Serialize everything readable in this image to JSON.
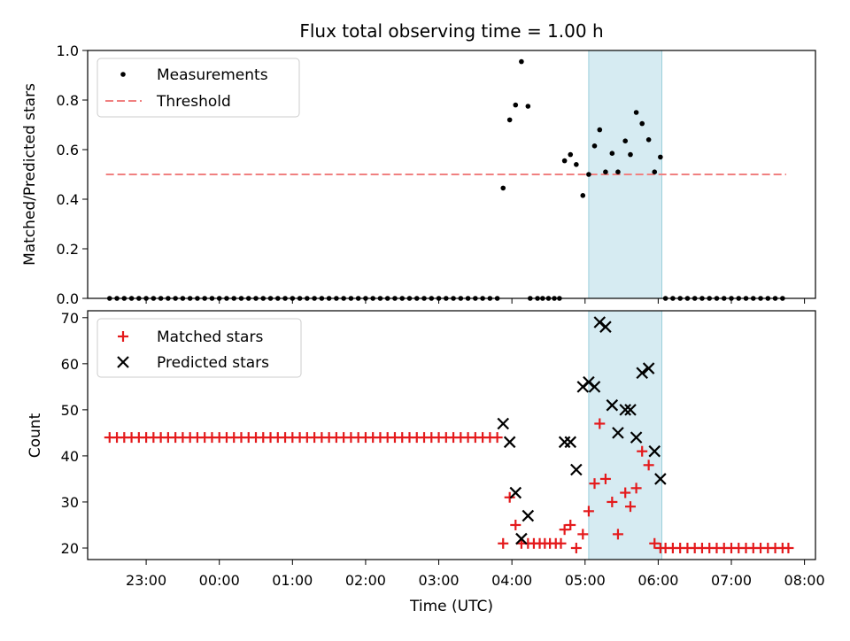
{
  "chart_data": [
    {
      "type": "scatter",
      "title": "Flux total observing time = 1.00 h",
      "ylabel": "Matched/Predicted stars",
      "ylim": [
        0,
        1.0
      ],
      "yticks": [
        "0.0",
        "0.2",
        "0.4",
        "0.6",
        "0.8",
        "1.0"
      ],
      "ytick_values": [
        0,
        0.2,
        0.4,
        0.6,
        0.8,
        1.0
      ],
      "legend": {
        "placement": "top-left",
        "measurements_label": "Measurements",
        "threshold_label": "Threshold"
      },
      "threshold": {
        "value": 0.5,
        "x_start": -1.55,
        "x_end": 7.75,
        "color": "#f08080"
      },
      "highlight_span": [
        5.05,
        6.05
      ],
      "series": [
        {
          "name": "Measurements",
          "marker": "dot",
          "color": "#000000",
          "points": [
            [
              -1.5,
              0
            ],
            [
              -1.4,
              0
            ],
            [
              -1.3,
              0
            ],
            [
              -1.2,
              0
            ],
            [
              -1.1,
              0
            ],
            [
              -1.0,
              0
            ],
            [
              -0.9,
              0
            ],
            [
              -0.8,
              0
            ],
            [
              -0.7,
              0
            ],
            [
              -0.6,
              0
            ],
            [
              -0.5,
              0
            ],
            [
              -0.4,
              0
            ],
            [
              -0.3,
              0
            ],
            [
              -0.2,
              0
            ],
            [
              -0.1,
              0
            ],
            [
              0.0,
              0
            ],
            [
              0.1,
              0
            ],
            [
              0.2,
              0
            ],
            [
              0.3,
              0
            ],
            [
              0.4,
              0
            ],
            [
              0.5,
              0
            ],
            [
              0.6,
              0
            ],
            [
              0.7,
              0
            ],
            [
              0.8,
              0
            ],
            [
              0.9,
              0
            ],
            [
              1.0,
              0
            ],
            [
              1.1,
              0
            ],
            [
              1.2,
              0
            ],
            [
              1.3,
              0
            ],
            [
              1.4,
              0
            ],
            [
              1.5,
              0
            ],
            [
              1.6,
              0
            ],
            [
              1.7,
              0
            ],
            [
              1.8,
              0
            ],
            [
              1.9,
              0
            ],
            [
              2.0,
              0
            ],
            [
              2.1,
              0
            ],
            [
              2.2,
              0
            ],
            [
              2.3,
              0
            ],
            [
              2.4,
              0
            ],
            [
              2.5,
              0
            ],
            [
              2.6,
              0
            ],
            [
              2.7,
              0
            ],
            [
              2.8,
              0
            ],
            [
              2.9,
              0
            ],
            [
              3.0,
              0
            ],
            [
              3.1,
              0
            ],
            [
              3.2,
              0
            ],
            [
              3.3,
              0
            ],
            [
              3.4,
              0
            ],
            [
              3.5,
              0
            ],
            [
              3.6,
              0
            ],
            [
              3.7,
              0
            ],
            [
              3.8,
              0
            ],
            [
              3.88,
              0.445
            ],
            [
              3.97,
              0.72
            ],
            [
              4.05,
              0.78
            ],
            [
              4.13,
              0.955
            ],
            [
              4.22,
              0.775
            ],
            [
              4.25,
              0
            ],
            [
              4.35,
              0
            ],
            [
              4.42,
              0
            ],
            [
              4.5,
              0
            ],
            [
              4.58,
              0
            ],
            [
              4.65,
              0
            ],
            [
              4.72,
              0.555
            ],
            [
              4.8,
              0.58
            ],
            [
              4.88,
              0.54
            ],
            [
              4.97,
              0.415
            ],
            [
              5.05,
              0.5
            ],
            [
              5.13,
              0.615
            ],
            [
              5.2,
              0.68
            ],
            [
              5.28,
              0.51
            ],
            [
              5.37,
              0.585
            ],
            [
              5.45,
              0.51
            ],
            [
              5.55,
              0.635
            ],
            [
              5.62,
              0.58
            ],
            [
              5.7,
              0.75
            ],
            [
              5.78,
              0.705
            ],
            [
              5.87,
              0.64
            ],
            [
              5.95,
              0.51
            ],
            [
              6.03,
              0.57
            ],
            [
              6.1,
              0
            ],
            [
              6.2,
              0
            ],
            [
              6.3,
              0
            ],
            [
              6.4,
              0
            ],
            [
              6.5,
              0
            ],
            [
              6.6,
              0
            ],
            [
              6.7,
              0
            ],
            [
              6.8,
              0
            ],
            [
              6.9,
              0
            ],
            [
              7.0,
              0
            ],
            [
              7.1,
              0
            ],
            [
              7.2,
              0
            ],
            [
              7.3,
              0
            ],
            [
              7.4,
              0
            ],
            [
              7.5,
              0
            ],
            [
              7.6,
              0
            ],
            [
              7.7,
              0
            ]
          ]
        }
      ]
    },
    {
      "type": "scatter",
      "xlabel": "Time (UTC)",
      "ylabel": "Count",
      "xlim": [
        -1.8,
        8.15
      ],
      "ylim": [
        17.5,
        71.5
      ],
      "xticks": [
        "23:00",
        "00:00",
        "01:00",
        "02:00",
        "03:00",
        "04:00",
        "05:00",
        "06:00",
        "07:00",
        "08:00"
      ],
      "xtick_values": [
        -1,
        0,
        1,
        2,
        3,
        4,
        5,
        6,
        7,
        8
      ],
      "yticks": [
        "20",
        "30",
        "40",
        "50",
        "60",
        "70"
      ],
      "ytick_values": [
        20,
        30,
        40,
        50,
        60,
        70
      ],
      "legend": {
        "placement": "top-left",
        "matched_label": "Matched stars",
        "predicted_label": "Predicted stars"
      },
      "highlight_span": [
        5.05,
        6.05
      ],
      "series": [
        {
          "name": "Matched stars",
          "marker": "plus",
          "color": "#e41a1c",
          "points": [
            [
              -1.5,
              44
            ],
            [
              -1.4,
              44
            ],
            [
              -1.3,
              44
            ],
            [
              -1.2,
              44
            ],
            [
              -1.1,
              44
            ],
            [
              -1.0,
              44
            ],
            [
              -0.9,
              44
            ],
            [
              -0.8,
              44
            ],
            [
              -0.7,
              44
            ],
            [
              -0.6,
              44
            ],
            [
              -0.5,
              44
            ],
            [
              -0.4,
              44
            ],
            [
              -0.3,
              44
            ],
            [
              -0.2,
              44
            ],
            [
              -0.1,
              44
            ],
            [
              0.0,
              44
            ],
            [
              0.1,
              44
            ],
            [
              0.2,
              44
            ],
            [
              0.3,
              44
            ],
            [
              0.4,
              44
            ],
            [
              0.5,
              44
            ],
            [
              0.6,
              44
            ],
            [
              0.7,
              44
            ],
            [
              0.8,
              44
            ],
            [
              0.9,
              44
            ],
            [
              1.0,
              44
            ],
            [
              1.1,
              44
            ],
            [
              1.2,
              44
            ],
            [
              1.3,
              44
            ],
            [
              1.4,
              44
            ],
            [
              1.5,
              44
            ],
            [
              1.6,
              44
            ],
            [
              1.7,
              44
            ],
            [
              1.8,
              44
            ],
            [
              1.9,
              44
            ],
            [
              2.0,
              44
            ],
            [
              2.1,
              44
            ],
            [
              2.2,
              44
            ],
            [
              2.3,
              44
            ],
            [
              2.4,
              44
            ],
            [
              2.5,
              44
            ],
            [
              2.6,
              44
            ],
            [
              2.7,
              44
            ],
            [
              2.8,
              44
            ],
            [
              2.9,
              44
            ],
            [
              3.0,
              44
            ],
            [
              3.1,
              44
            ],
            [
              3.2,
              44
            ],
            [
              3.3,
              44
            ],
            [
              3.4,
              44
            ],
            [
              3.5,
              44
            ],
            [
              3.6,
              44
            ],
            [
              3.7,
              44
            ],
            [
              3.8,
              44
            ],
            [
              3.88,
              21
            ],
            [
              3.97,
              31
            ],
            [
              4.05,
              25
            ],
            [
              4.13,
              21
            ],
            [
              4.22,
              21
            ],
            [
              4.3,
              21
            ],
            [
              4.38,
              21
            ],
            [
              4.45,
              21
            ],
            [
              4.52,
              21
            ],
            [
              4.6,
              21
            ],
            [
              4.67,
              21
            ],
            [
              4.72,
              24
            ],
            [
              4.8,
              25
            ],
            [
              4.88,
              20
            ],
            [
              4.97,
              23
            ],
            [
              5.05,
              28
            ],
            [
              5.13,
              34
            ],
            [
              5.2,
              47
            ],
            [
              5.28,
              35
            ],
            [
              5.37,
              30
            ],
            [
              5.45,
              23
            ],
            [
              5.55,
              32
            ],
            [
              5.62,
              29
            ],
            [
              5.7,
              33
            ],
            [
              5.78,
              41
            ],
            [
              5.87,
              38
            ],
            [
              5.95,
              21
            ],
            [
              6.03,
              20
            ],
            [
              6.1,
              20
            ],
            [
              6.2,
              20
            ],
            [
              6.3,
              20
            ],
            [
              6.4,
              20
            ],
            [
              6.5,
              20
            ],
            [
              6.6,
              20
            ],
            [
              6.7,
              20
            ],
            [
              6.8,
              20
            ],
            [
              6.9,
              20
            ],
            [
              7.0,
              20
            ],
            [
              7.1,
              20
            ],
            [
              7.2,
              20
            ],
            [
              7.3,
              20
            ],
            [
              7.4,
              20
            ],
            [
              7.5,
              20
            ],
            [
              7.6,
              20
            ],
            [
              7.7,
              20
            ],
            [
              7.78,
              20
            ]
          ]
        },
        {
          "name": "Predicted stars",
          "marker": "x",
          "color": "#000000",
          "points": [
            [
              3.88,
              47
            ],
            [
              3.97,
              43
            ],
            [
              4.05,
              32
            ],
            [
              4.13,
              22
            ],
            [
              4.22,
              27
            ],
            [
              4.72,
              43
            ],
            [
              4.8,
              43
            ],
            [
              4.88,
              37
            ],
            [
              4.97,
              55
            ],
            [
              5.05,
              56
            ],
            [
              5.13,
              55
            ],
            [
              5.2,
              69
            ],
            [
              5.28,
              68
            ],
            [
              5.37,
              51
            ],
            [
              5.45,
              45
            ],
            [
              5.55,
              50
            ],
            [
              5.62,
              50
            ],
            [
              5.7,
              44
            ],
            [
              5.78,
              58
            ],
            [
              5.87,
              59
            ],
            [
              5.95,
              41
            ],
            [
              6.03,
              35
            ]
          ]
        }
      ]
    }
  ]
}
